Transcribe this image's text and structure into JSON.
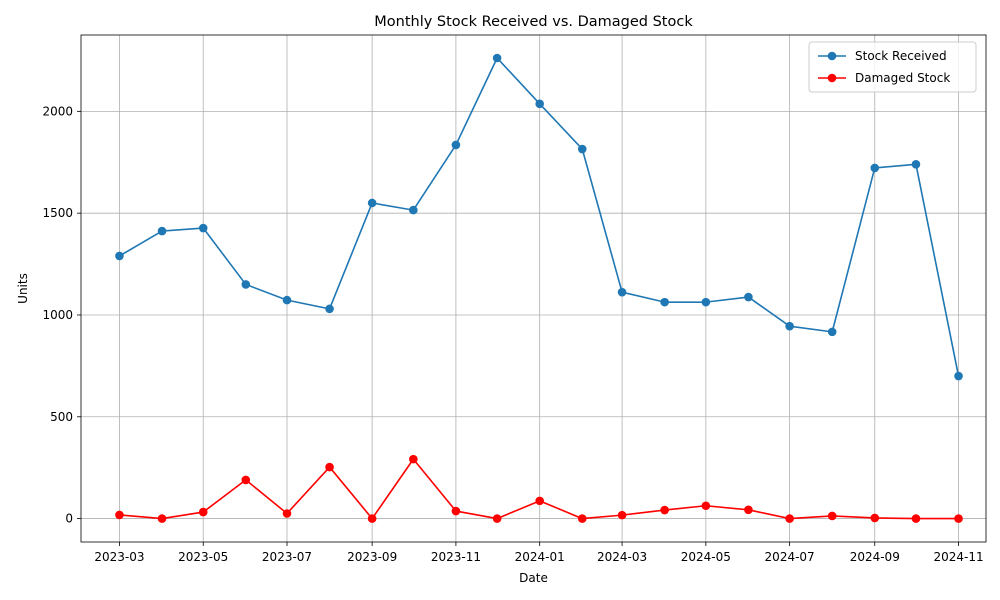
{
  "chart_data": {
    "type": "line",
    "title": "Monthly Stock Received vs. Damaged Stock",
    "xlabel": "Date",
    "ylabel": "Units",
    "x": [
      "2023-03",
      "2023-04",
      "2023-05",
      "2023-06",
      "2023-07",
      "2023-08",
      "2023-09",
      "2023-10",
      "2023-11",
      "2023-12",
      "2024-01",
      "2024-02",
      "2024-03",
      "2024-04",
      "2024-05",
      "2024-06",
      "2024-07",
      "2024-08",
      "2024-09",
      "2024-10",
      "2024-11"
    ],
    "x_ticks": [
      "2023-03",
      "2023-05",
      "2023-07",
      "2023-09",
      "2023-11",
      "2024-01",
      "2024-03",
      "2024-05",
      "2024-07",
      "2024-09",
      "2024-11"
    ],
    "y_ticks": [
      0,
      500,
      1000,
      1500,
      2000
    ],
    "ylim": [
      -115,
      2375
    ],
    "xlim": [
      "2023-02-01",
      "2024-11-21"
    ],
    "grid": true,
    "legend_position": "top-right",
    "series": [
      {
        "name": "Stock Received",
        "color": "#1f77b4",
        "values": [
          1290,
          1412,
          1427,
          1150,
          1073,
          1030,
          1550,
          1515,
          1835,
          2262,
          2037,
          1815,
          1112,
          1063,
          1063,
          1088,
          945,
          917,
          1722,
          1740,
          700
        ]
      },
      {
        "name": "Damaged Stock",
        "color": "#ff0000",
        "values": [
          18,
          0,
          32,
          190,
          25,
          253,
          0,
          292,
          37,
          0,
          87,
          0,
          17,
          42,
          63,
          43,
          0,
          13,
          3,
          0,
          0
        ]
      }
    ]
  }
}
